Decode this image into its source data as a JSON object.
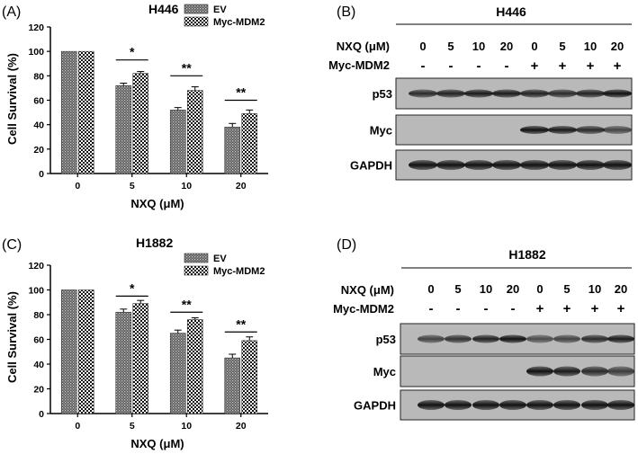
{
  "panels": {
    "A": {
      "panel_label": "(A)",
      "title": "H446",
      "xlabel": "NXQ (μM)",
      "ylabel": "Cell Survival (%)"
    },
    "B": {
      "panel_label": "(B)",
      "title": "H446",
      "row_headers": [
        "NXQ (μM)",
        "Myc-MDM2"
      ],
      "nxq_values": [
        "0",
        "5",
        "10",
        "20",
        "0",
        "5",
        "10",
        "20"
      ],
      "myc_mdm2_values": [
        "-",
        "-",
        "-",
        "-",
        "+",
        "+",
        "+",
        "+"
      ],
      "blot_labels": [
        "p53",
        "Myc",
        "GAPDH"
      ]
    },
    "C": {
      "panel_label": "(C)",
      "title": "H1882",
      "xlabel": "NXQ (μM)",
      "ylabel": "Cell Survival (%)"
    },
    "D": {
      "panel_label": "(D)",
      "title": "H1882",
      "row_headers": [
        "NXQ (μM)",
        "Myc-MDM2"
      ],
      "nxq_values": [
        "0",
        "5",
        "10",
        "20",
        "0",
        "5",
        "10",
        "20"
      ],
      "myc_mdm2_values": [
        "-",
        "-",
        "-",
        "-",
        "+",
        "+",
        "+",
        "+"
      ],
      "blot_labels": [
        "p53",
        "Myc",
        "GAPDH"
      ]
    }
  },
  "chart_data": [
    {
      "panel": "A",
      "type": "bar",
      "title": "H446",
      "xlabel": "NXQ (μM)",
      "ylabel": "Cell Survival (%)",
      "categories": [
        "0",
        "5",
        "10",
        "20"
      ],
      "ylim": [
        0,
        120
      ],
      "yticks": [
        "0",
        "20",
        "40",
        "60",
        "80",
        "100",
        "120"
      ],
      "legend_position": "top-right",
      "series": [
        {
          "name": "EV",
          "values": [
            100,
            72,
            52,
            38
          ],
          "errors": [
            0,
            2,
            2,
            3
          ],
          "pattern": "dense"
        },
        {
          "name": "Myc-MDM2",
          "values": [
            100,
            82,
            68,
            49
          ],
          "errors": [
            0,
            1.5,
            3,
            3
          ],
          "pattern": "check"
        }
      ],
      "significance": [
        {
          "category": "5",
          "label": "*",
          "y": 93
        },
        {
          "category": "10",
          "label": "**",
          "y": 80
        },
        {
          "category": "20",
          "label": "**",
          "y": 60
        }
      ]
    },
    {
      "panel": "C",
      "type": "bar",
      "title": "H1882",
      "xlabel": "NXQ (μM)",
      "ylabel": "Cell Survival (%)",
      "categories": [
        "0",
        "5",
        "10",
        "20"
      ],
      "ylim": [
        0,
        120
      ],
      "yticks": [
        "0",
        "20",
        "40",
        "60",
        "80",
        "100",
        "120"
      ],
      "legend_position": "top-right",
      "series": [
        {
          "name": "EV",
          "values": [
            100,
            82,
            65,
            45
          ],
          "errors": [
            0,
            2.5,
            2.5,
            3
          ],
          "pattern": "dense"
        },
        {
          "name": "Myc-MDM2",
          "values": [
            100,
            89,
            76,
            59
          ],
          "errors": [
            0,
            2.5,
            1.5,
            3
          ],
          "pattern": "check"
        }
      ],
      "significance": [
        {
          "category": "5",
          "label": "*",
          "y": 95
        },
        {
          "category": "10",
          "label": "**",
          "y": 82
        },
        {
          "category": "20",
          "label": "**",
          "y": 66
        }
      ]
    }
  ]
}
